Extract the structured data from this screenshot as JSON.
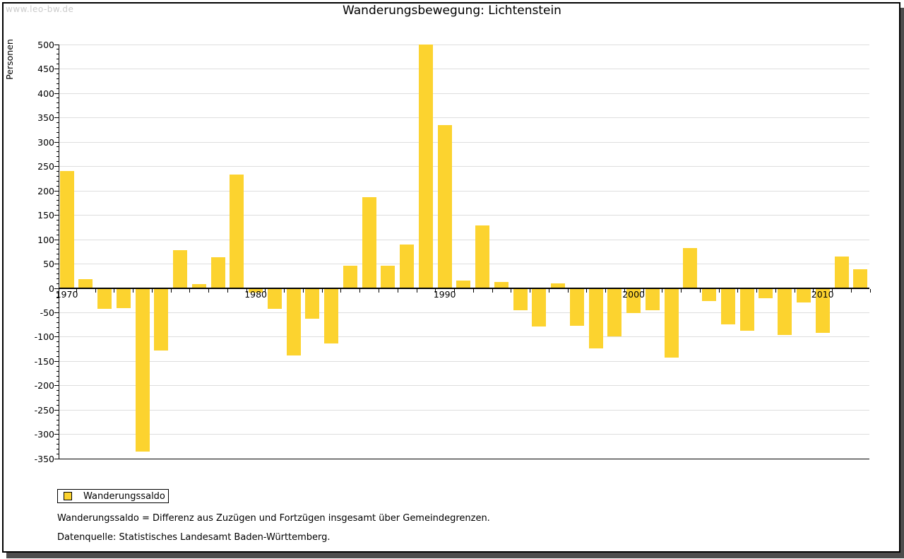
{
  "watermark": "www.leo-bw.de",
  "title": "Wanderungsbewegung: Lichtenstein",
  "chart_data": {
    "type": "bar",
    "title": "Wanderungsbewegung: Lichtenstein",
    "xlabel": "",
    "ylabel": "Personen",
    "ylim": [
      -350,
      500
    ],
    "y_major_step": 50,
    "y_minor_step": 10,
    "grid": true,
    "legend_position": "bottom-left",
    "bar_color": "#fcd32f",
    "x_tick_labels": [
      "1970",
      "1980",
      "1990",
      "2000",
      "2010"
    ],
    "categories": [
      1970,
      1971,
      1972,
      1973,
      1974,
      1975,
      1976,
      1977,
      1978,
      1979,
      1980,
      1981,
      1982,
      1983,
      1984,
      1985,
      1986,
      1987,
      1988,
      1989,
      1990,
      1991,
      1992,
      1993,
      1994,
      1995,
      1996,
      1997,
      1998,
      1999,
      2000,
      2001,
      2002,
      2003,
      2004,
      2005,
      2006,
      2007,
      2008,
      2009,
      2010,
      2011,
      2012
    ],
    "series": [
      {
        "name": "Wanderungssaldo",
        "values": [
          240,
          18,
          -43,
          -41,
          -335,
          -128,
          78,
          8,
          63,
          233,
          -10,
          -42,
          -138,
          -63,
          -114,
          46,
          186,
          46,
          89,
          500,
          334,
          15,
          128,
          12,
          -46,
          -79,
          9,
          -77,
          -124,
          -99,
          -51,
          -45,
          -143,
          82,
          -27,
          -75,
          -87,
          -21,
          -96,
          -29,
          -92,
          64,
          39
        ]
      }
    ]
  },
  "legend": {
    "label": "Wanderungssaldo",
    "swatch_color": "#fcd32f"
  },
  "footnotes": {
    "line1": "Wanderungssaldo = Differenz aus Zuzügen und Fortzügen insgesamt über Gemeindegrenzen.",
    "line2": "Datenquelle: Statistisches Landesamt Baden-Württemberg."
  },
  "colors": {
    "bar": "#fcd32f",
    "grid": "#dedede",
    "axis": "#000000",
    "watermark": "#cbcbcb",
    "shadow": "#4d4d4d"
  }
}
